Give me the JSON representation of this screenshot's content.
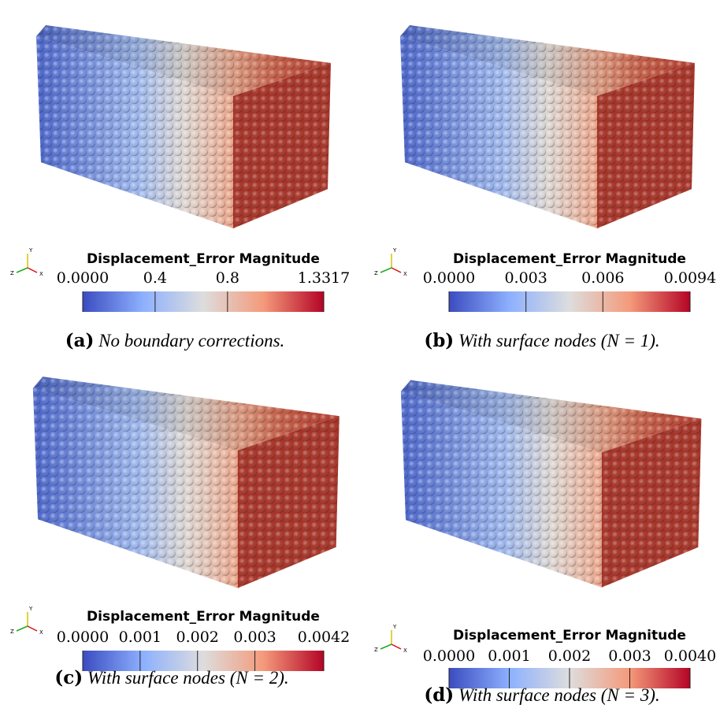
{
  "orientation_axes": {
    "x": "X",
    "y": "Y",
    "z": "Z"
  },
  "panels": [
    {
      "label": "(a)",
      "caption": "No boundary corrections.",
      "colorbar": {
        "title": "Displacement_Error Magnitude",
        "range": [
          0,
          1.3317
        ],
        "ticks": [
          {
            "value": 0,
            "label": "0.0000"
          },
          0.4,
          0.8,
          1.3317
        ]
      }
    },
    {
      "label": "(b)",
      "caption": "With surface nodes (N = 1).",
      "colorbar": {
        "title": "Displacement_Error Magnitude",
        "range": [
          0,
          0.0094
        ],
        "ticks": [
          {
            "value": 0,
            "label": "0.0000"
          },
          0.003,
          0.006,
          0.0094
        ]
      }
    },
    {
      "label": "(c)",
      "caption": "With surface nodes (N = 2).",
      "colorbar": {
        "title": "Displacement_Error Magnitude",
        "range": [
          0,
          0.0042
        ],
        "ticks": [
          {
            "value": 0,
            "label": "0.0000"
          },
          0.001,
          0.002,
          0.003,
          0.0042
        ]
      }
    },
    {
      "label": "(d)",
      "caption": "With surface nodes (N = 3).",
      "colorbar": {
        "title": "Displacement_Error Magnitude",
        "range": [
          0,
          0.004
        ],
        "ticks": [
          {
            "value": 0,
            "label": "0.0000"
          },
          0.001,
          0.002,
          0.003,
          {
            "value": 0.004,
            "label": "0.0040"
          }
        ]
      }
    }
  ]
}
